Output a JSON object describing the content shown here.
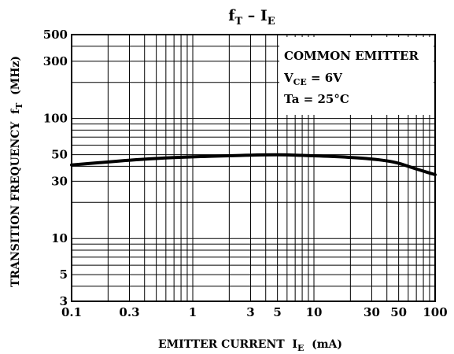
{
  "chart_data": {
    "type": "line",
    "title": {
      "main": "f",
      "main_sub": "T",
      "sep": " – ",
      "second": "I",
      "second_sub": "E"
    },
    "xlabel": {
      "text": "EMITTER CURRENT  I",
      "sub": "E",
      "unit": "  (mA)"
    },
    "ylabel": {
      "text": "TRANSITION FREQUENCY  f",
      "sub": "T",
      "unit": "  (MHz)"
    },
    "xscale": "log",
    "yscale": "log",
    "xlim": [
      0.1,
      100
    ],
    "ylim": [
      3,
      500
    ],
    "grid": true,
    "x_ticks": [
      {
        "v": 0.1,
        "label": "0.1"
      },
      {
        "v": 0.3,
        "label": "0.3"
      },
      {
        "v": 1,
        "label": "1"
      },
      {
        "v": 3,
        "label": "3"
      },
      {
        "v": 5,
        "label": "5"
      },
      {
        "v": 10,
        "label": "10"
      },
      {
        "v": 30,
        "label": "30"
      },
      {
        "v": 50,
        "label": "50"
      },
      {
        "v": 100,
        "label": "100"
      }
    ],
    "y_ticks": [
      {
        "v": 3,
        "label": "3"
      },
      {
        "v": 5,
        "label": "5"
      },
      {
        "v": 10,
        "label": "10"
      },
      {
        "v": 30,
        "label": "30"
      },
      {
        "v": 50,
        "label": "50"
      },
      {
        "v": 100,
        "label": "100"
      },
      {
        "v": 300,
        "label": "300"
      },
      {
        "v": 500,
        "label": "500"
      }
    ],
    "x_grid": [
      0.1,
      0.2,
      0.3,
      0.4,
      0.5,
      0.6,
      0.7,
      0.8,
      0.9,
      1,
      2,
      3,
      4,
      5,
      6,
      7,
      8,
      9,
      10,
      20,
      30,
      40,
      50,
      60,
      70,
      80,
      90,
      100
    ],
    "y_grid": [
      3,
      4,
      5,
      6,
      7,
      8,
      9,
      10,
      20,
      30,
      40,
      50,
      60,
      70,
      80,
      90,
      100,
      200,
      300,
      400,
      500
    ],
    "annotation": {
      "line1": "COMMON EMITTER",
      "line2_main": "V",
      "line2_sub": "CE",
      "line2_rest": " = 6V",
      "line3": "Ta = 25°C"
    },
    "series": [
      {
        "x": [
          0.1,
          0.2,
          0.3,
          0.5,
          1,
          2,
          3,
          5,
          7,
          10,
          20,
          30,
          40,
          50,
          60,
          70,
          100
        ],
        "y": [
          41,
          43.5,
          45,
          46.5,
          48,
          49,
          49.5,
          50,
          49.5,
          49,
          47.5,
          46,
          44.5,
          42.5,
          40,
          38,
          34
        ]
      }
    ]
  }
}
